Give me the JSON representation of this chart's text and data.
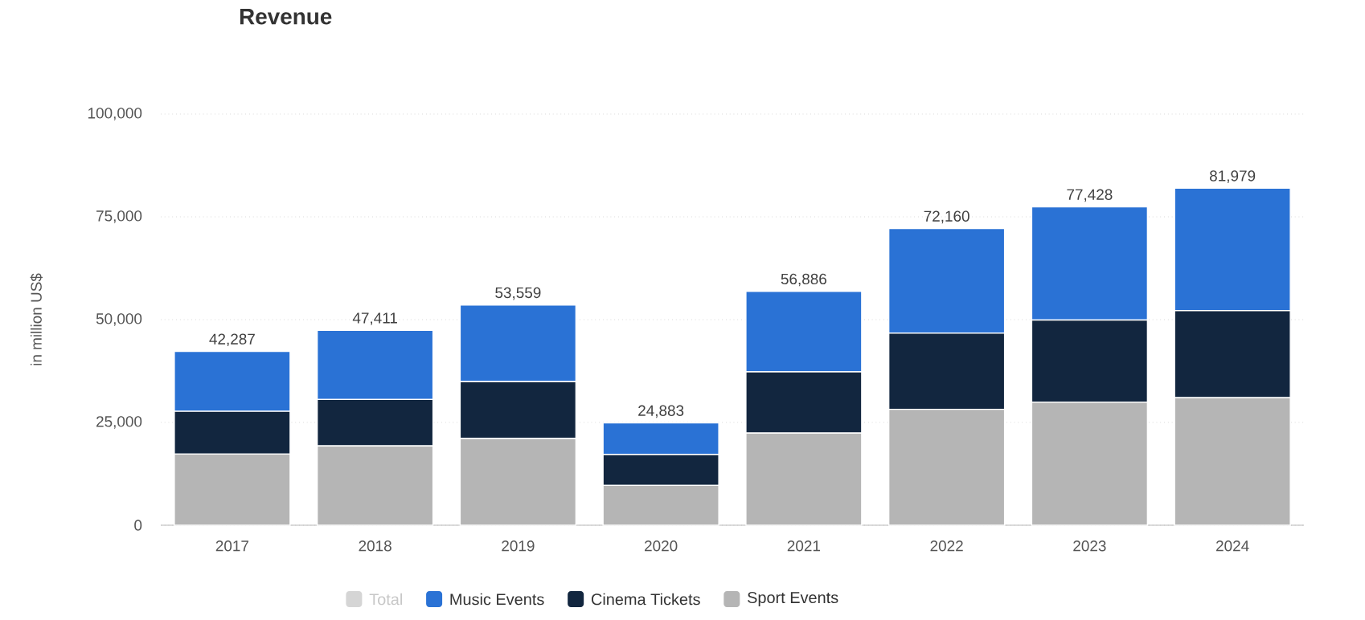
{
  "chart_data": {
    "type": "bar",
    "title": "Revenue",
    "ylabel": "in million US$",
    "stacked": true,
    "categories": [
      "2017",
      "2018",
      "2019",
      "2020",
      "2021",
      "2022",
      "2023",
      "2024"
    ],
    "series": [
      {
        "name": "Sport Events",
        "color": "#b5b5b5",
        "values": [
          17300,
          19300,
          21100,
          9700,
          22400,
          28200,
          29900,
          31000
        ]
      },
      {
        "name": "Cinema Tickets",
        "color": "#12263f",
        "values": [
          10400,
          11300,
          13800,
          7500,
          14900,
          18500,
          20000,
          21200
        ]
      },
      {
        "name": "Music Events",
        "color": "#2a72d5",
        "values": [
          14587,
          16811,
          18659,
          7683,
          19586,
          25460,
          27528,
          29779
        ]
      },
      {
        "name": "Total",
        "color": "#d5d5d5",
        "values": [
          null,
          null,
          null,
          null,
          null,
          null,
          null,
          null
        ]
      }
    ],
    "totals": [
      "42,287",
      "47,411",
      "53,559",
      "24,883",
      "56,886",
      "72,160",
      "77,428",
      "81,979"
    ],
    "ylim": [
      0,
      100000
    ],
    "yticks": [
      {
        "value": 0,
        "label": "0"
      },
      {
        "value": 25000,
        "label": "25,000"
      },
      {
        "value": 50000,
        "label": "50,000"
      },
      {
        "value": 75000,
        "label": "75,000"
      },
      {
        "value": 100000,
        "label": "100,000"
      }
    ],
    "grid": "y",
    "legend": "bottom"
  }
}
